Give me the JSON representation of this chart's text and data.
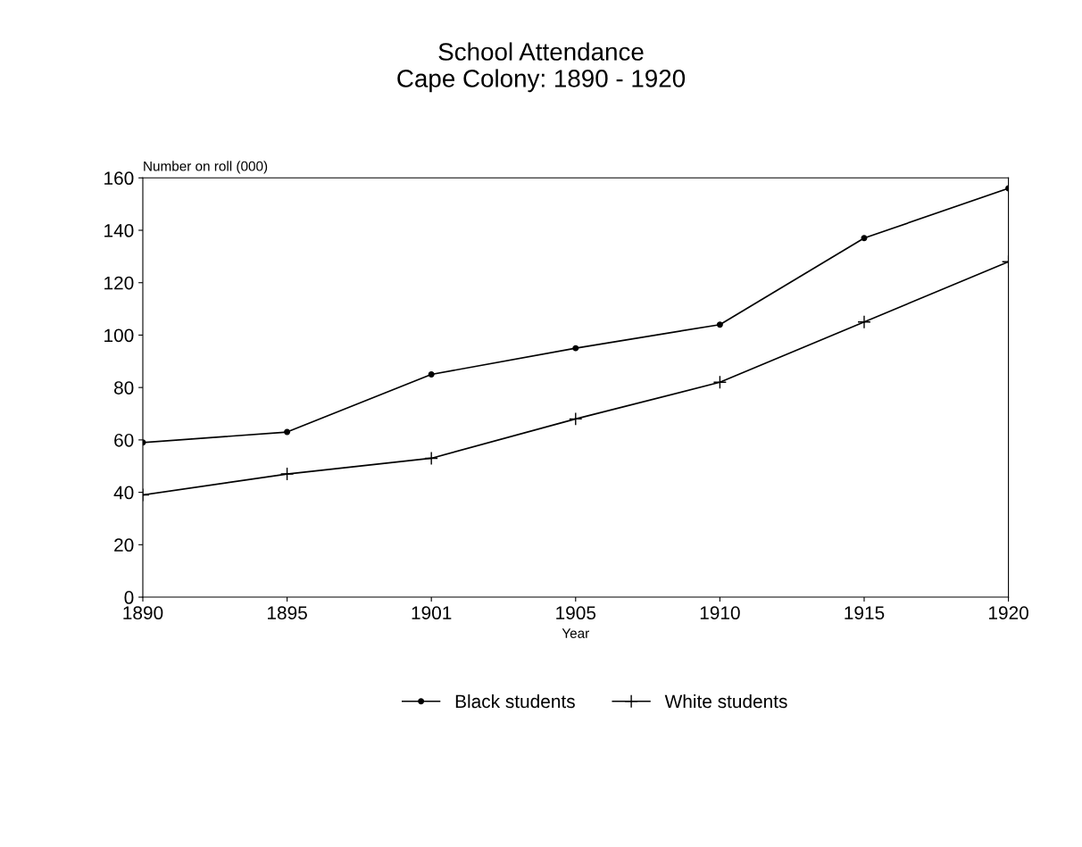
{
  "chart_data": {
    "type": "line",
    "title": "School Attendance\nCape Colony: 1890 - 1920",
    "xlabel": "Year",
    "ylabel": "Number on roll (000)",
    "categories": [
      "1890",
      "1895",
      "1901",
      "1905",
      "1910",
      "1915",
      "1920"
    ],
    "series": [
      {
        "name": "Black students",
        "color": "#000000",
        "marker": "circle",
        "values": [
          59,
          63,
          85,
          95,
          104,
          137,
          156
        ]
      },
      {
        "name": "White students",
        "color": "#000000",
        "marker": "cross",
        "values": [
          39,
          47,
          53,
          68,
          82,
          105,
          128
        ]
      }
    ],
    "ylim": [
      0,
      160
    ],
    "yticks": [
      0,
      20,
      40,
      60,
      80,
      100,
      120,
      140,
      160
    ],
    "grid": false,
    "legend": "bottom",
    "line_style": "solid"
  }
}
